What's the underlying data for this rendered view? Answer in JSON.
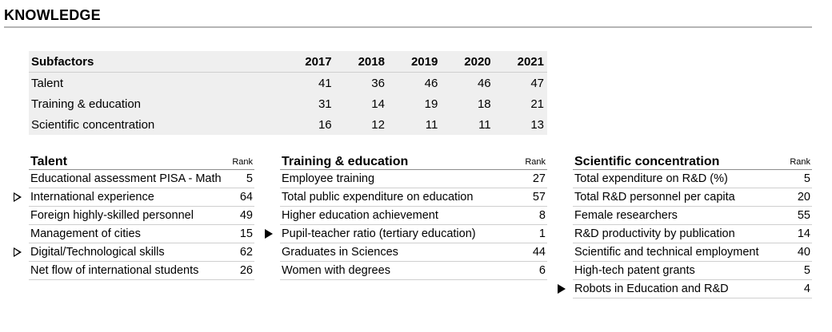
{
  "title": "KNOWLEDGE",
  "summary": {
    "header": {
      "label": "Subfactors",
      "years": [
        "2017",
        "2018",
        "2019",
        "2020",
        "2021"
      ]
    },
    "rows": [
      {
        "label": "Talent",
        "values": [
          "41",
          "36",
          "46",
          "46",
          "47"
        ]
      },
      {
        "label": "Training & education",
        "values": [
          "31",
          "14",
          "19",
          "18",
          "21"
        ]
      },
      {
        "label": "Scientific concentration",
        "values": [
          "16",
          "12",
          "11",
          "11",
          "13"
        ]
      }
    ]
  },
  "sections": [
    {
      "title": "Talent",
      "rank_label": "Rank",
      "items": [
        {
          "name": "Educational assessment PISA - Math",
          "rank": "5",
          "marker": "none"
        },
        {
          "name": "International experience",
          "rank": "64",
          "marker": "outline-triangle"
        },
        {
          "name": "Foreign highly-skilled personnel",
          "rank": "49",
          "marker": "none"
        },
        {
          "name": "Management of cities",
          "rank": "15",
          "marker": "none"
        },
        {
          "name": "Digital/Technological skills",
          "rank": "62",
          "marker": "outline-triangle"
        },
        {
          "name": "Net flow of international students",
          "rank": "26",
          "marker": "none"
        }
      ]
    },
    {
      "title": "Training & education",
      "rank_label": "Rank",
      "items": [
        {
          "name": "Employee training",
          "rank": "27",
          "marker": "none"
        },
        {
          "name": "Total public expenditure on education",
          "rank": "57",
          "marker": "none"
        },
        {
          "name": "Higher education achievement",
          "rank": "8",
          "marker": "none"
        },
        {
          "name": "Pupil-teacher ratio (tertiary education)",
          "rank": "1",
          "marker": "filled-triangle"
        },
        {
          "name": "Graduates in Sciences",
          "rank": "44",
          "marker": "none"
        },
        {
          "name": "Women with degrees",
          "rank": "6",
          "marker": "none"
        }
      ]
    },
    {
      "title": "Scientific concentration",
      "rank_label": "Rank",
      "items": [
        {
          "name": "Total expenditure on R&D (%)",
          "rank": "5",
          "marker": "none"
        },
        {
          "name": "Total R&D personnel per capita",
          "rank": "20",
          "marker": "none"
        },
        {
          "name": "Female researchers",
          "rank": "55",
          "marker": "none"
        },
        {
          "name": "R&D productivity by publication",
          "rank": "14",
          "marker": "none"
        },
        {
          "name": "Scientific and technical employment",
          "rank": "40",
          "marker": "none"
        },
        {
          "name": "High-tech patent grants",
          "rank": "5",
          "marker": "none"
        },
        {
          "name": "Robots in Education and R&D",
          "rank": "4",
          "marker": "filled-triangle"
        }
      ]
    }
  ]
}
